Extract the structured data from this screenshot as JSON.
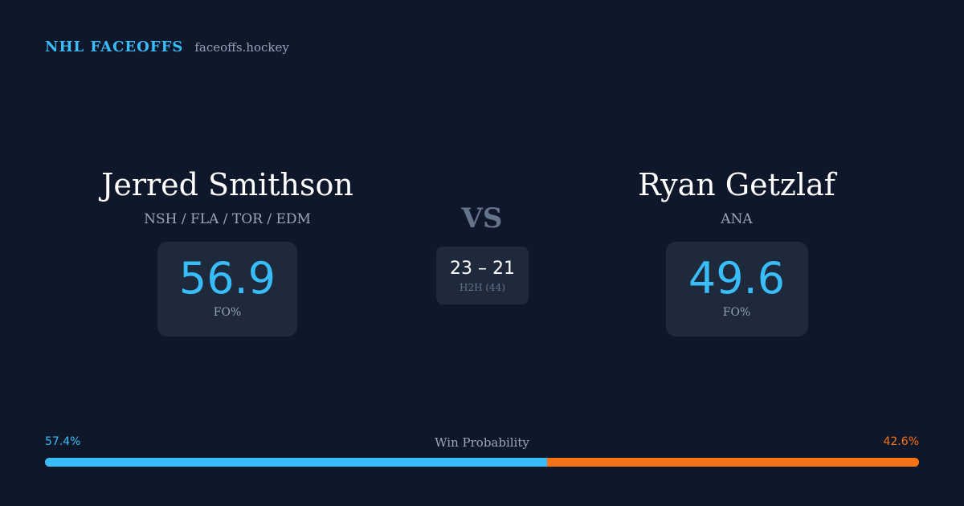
{
  "brand": {
    "name": "NHL FACEOFFS",
    "domain": "faceoffs.hockey"
  },
  "player_left": {
    "name": "Jerred Smithson",
    "teams": "NSH / FLA / TOR / EDM",
    "fo_value": "56.9",
    "fo_label": "FO%"
  },
  "player_right": {
    "name": "Ryan Getzlaf",
    "teams": "ANA",
    "fo_value": "49.6",
    "fo_label": "FO%"
  },
  "matchup": {
    "vs_label": "VS",
    "h2h_score": "23 – 21",
    "h2h_label": "H2H (44)"
  },
  "win_probability": {
    "title": "Win Probability",
    "left_label": "57.4%",
    "right_label": "42.6%",
    "left_fraction": 0.574,
    "left_color": "#38bdf8",
    "right_color": "#f97316"
  }
}
